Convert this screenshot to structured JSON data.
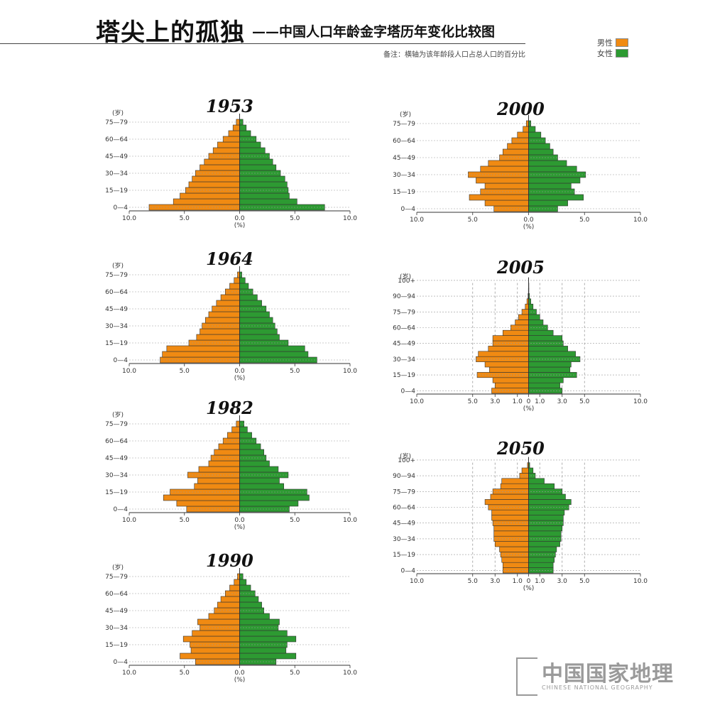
{
  "header": {
    "title": "塔尖上的孤独",
    "subtitle": "——中国人口年龄金字塔历年变化比较图",
    "note": "备注：横轴为该年龄段人口占总人口的百分比"
  },
  "legend": {
    "male_label": "男性",
    "female_label": "女性"
  },
  "colors": {
    "male": "#f08a12",
    "female": "#2d9a32"
  },
  "logo": {
    "text": "中国国家地理",
    "subtext": "CHINESE NATIONAL GEOGRAPHY"
  },
  "chart_data": [
    {
      "type": "bar",
      "year": "1953",
      "unit_label": "(岁)",
      "xlabel": "(%)",
      "ylabels": [
        "0—4",
        "15—19",
        "30—34",
        "45—49",
        "60—64",
        "75—79"
      ],
      "xticks": [
        "10.0",
        "5.0",
        "0.0",
        "5.0",
        "10.0"
      ],
      "xlim": [
        -10,
        10
      ],
      "male": [
        8.2,
        6.0,
        5.4,
        4.9,
        4.6,
        4.3,
        4.0,
        3.6,
        3.2,
        2.8,
        2.4,
        2.0,
        1.5,
        1.0,
        0.6,
        0.3
      ],
      "female": [
        7.7,
        5.2,
        4.5,
        4.4,
        4.3,
        4.1,
        3.7,
        3.3,
        3.0,
        2.7,
        2.3,
        1.9,
        1.5,
        1.0,
        0.6,
        0.3
      ]
    },
    {
      "type": "bar",
      "year": "1964",
      "unit_label": "(岁)",
      "xlabel": "(%)",
      "ylabels": [
        "0—4",
        "15—19",
        "30—34",
        "45—49",
        "60—64",
        "75—79"
      ],
      "xticks": [
        "10.0",
        "5.0",
        "0.0",
        "5.0",
        "10.0"
      ],
      "xlim": [
        -10,
        10
      ],
      "male": [
        7.2,
        7.0,
        6.6,
        4.6,
        3.9,
        3.6,
        3.4,
        3.1,
        2.8,
        2.5,
        2.1,
        1.7,
        1.3,
        0.9,
        0.5,
        0.2
      ],
      "female": [
        7.0,
        6.2,
        5.9,
        4.4,
        3.6,
        3.4,
        3.2,
        3.0,
        2.7,
        2.4,
        2.0,
        1.6,
        1.2,
        0.8,
        0.5,
        0.2
      ]
    },
    {
      "type": "bar",
      "year": "1982",
      "unit_label": "(岁)",
      "xlabel": "(%)",
      "ylabels": [
        "0—4",
        "15—19",
        "30—34",
        "45—49",
        "60—64",
        "75—79"
      ],
      "xticks": [
        "10.0",
        "5.0",
        "0.0",
        "5.0",
        "10.0"
      ],
      "xlim": [
        -10,
        10
      ],
      "male": [
        4.8,
        5.7,
        6.9,
        6.3,
        4.1,
        3.8,
        4.7,
        3.7,
        2.8,
        2.6,
        2.3,
        1.9,
        1.5,
        1.1,
        0.7,
        0.3
      ],
      "female": [
        4.5,
        5.3,
        6.3,
        6.1,
        4.0,
        3.6,
        4.4,
        3.5,
        2.7,
        2.4,
        2.2,
        1.9,
        1.5,
        1.1,
        0.7,
        0.4
      ]
    },
    {
      "type": "bar",
      "year": "1990",
      "unit_label": "(岁)",
      "xlabel": "(%)",
      "ylabels": [
        "0—4",
        "15—19",
        "30—34",
        "45—49",
        "60—64",
        "75—79"
      ],
      "xticks": [
        "10.0",
        "5.0",
        "0.0",
        "5.0",
        "10.0"
      ],
      "xlim": [
        -10,
        10
      ],
      "male": [
        4.0,
        5.4,
        4.4,
        4.5,
        5.1,
        4.3,
        3.6,
        3.8,
        2.8,
        2.3,
        2.0,
        1.7,
        1.3,
        0.9,
        0.5,
        0.2
      ],
      "female": [
        3.3,
        5.1,
        4.2,
        4.3,
        5.1,
        4.3,
        3.5,
        3.6,
        2.7,
        2.2,
        2.0,
        1.7,
        1.4,
        1.0,
        0.6,
        0.3
      ]
    },
    {
      "type": "bar",
      "year": "2000",
      "unit_label": "(岁)",
      "xlabel": "(%)",
      "ylabels": [
        "0—4",
        "15—19",
        "30—34",
        "45—49",
        "60—64",
        "75—79"
      ],
      "xticks": [
        "10.0",
        "5.0",
        "0.0",
        "5.0",
        "10.0"
      ],
      "xlim": [
        -10,
        10
      ],
      "male": [
        3.1,
        3.9,
        5.3,
        4.3,
        3.9,
        4.7,
        5.4,
        4.3,
        3.6,
        2.6,
        2.3,
        1.9,
        1.5,
        1.0,
        0.5,
        0.2
      ],
      "female": [
        2.6,
        3.5,
        4.9,
        4.1,
        3.8,
        4.6,
        5.1,
        4.3,
        3.4,
        2.6,
        2.2,
        1.9,
        1.5,
        1.1,
        0.6,
        0.2
      ]
    },
    {
      "type": "bar",
      "year": "2005",
      "unit_label": "(岁)",
      "xlabel": "(%)",
      "ylabels": [
        "0—4",
        "15—19",
        "30—34",
        "45—49",
        "60—64",
        "75—79",
        "90—94",
        "100+"
      ],
      "xticks": [
        "10.0",
        "5.0",
        "3.0",
        "1.0",
        "0",
        "1.0",
        "3.0",
        "5.0",
        "10.0"
      ],
      "xlim": [
        -10,
        10
      ],
      "male": [
        3.3,
        3.0,
        3.2,
        4.6,
        3.5,
        3.9,
        4.7,
        4.5,
        3.6,
        3.2,
        3.2,
        2.3,
        1.6,
        1.2,
        0.9,
        0.6,
        0.3,
        0.15,
        0.05,
        0.02,
        0.01
      ],
      "female": [
        3.0,
        2.8,
        3.1,
        4.3,
        3.7,
        3.8,
        4.6,
        4.2,
        3.5,
        3.1,
        3.0,
        2.2,
        1.7,
        1.3,
        1.0,
        0.7,
        0.4,
        0.2,
        0.08,
        0.03,
        0.01
      ]
    },
    {
      "type": "bar",
      "year": "2050",
      "unit_label": "(岁)",
      "xlabel": "(%)",
      "ylabels": [
        "0—4",
        "15—19",
        "30—34",
        "45—49",
        "60—64",
        "75—79",
        "90—94",
        "100+"
      ],
      "xticks": [
        "10.0",
        "5.0",
        "3.0",
        "1.0",
        "0",
        "1.0",
        "3.0",
        "5.0",
        "10.0"
      ],
      "xlim": [
        -10,
        10
      ],
      "male": [
        2.3,
        2.3,
        2.4,
        2.5,
        2.6,
        3.0,
        3.1,
        3.1,
        3.1,
        3.2,
        3.3,
        3.3,
        3.6,
        3.9,
        3.4,
        3.2,
        2.5,
        2.4,
        0.8,
        0.6,
        0.1
      ],
      "female": [
        2.2,
        2.2,
        2.3,
        2.4,
        2.5,
        2.8,
        2.9,
        2.9,
        3.0,
        3.1,
        3.1,
        3.2,
        3.6,
        3.8,
        3.3,
        3.0,
        2.3,
        1.4,
        0.6,
        0.4,
        0.1
      ]
    }
  ]
}
